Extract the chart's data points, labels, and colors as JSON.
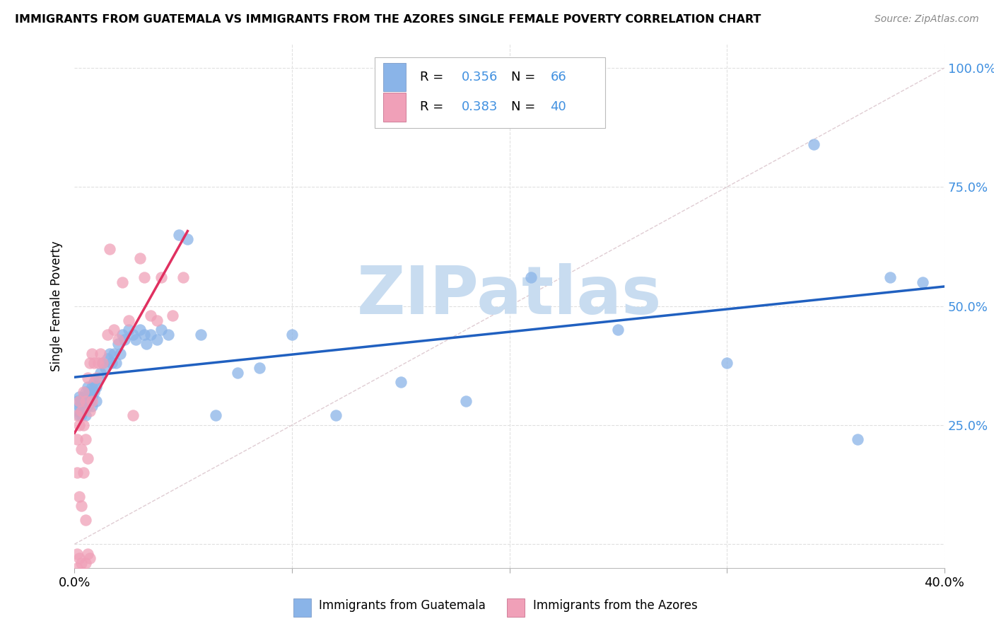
{
  "title": "IMMIGRANTS FROM GUATEMALA VS IMMIGRANTS FROM THE AZORES SINGLE FEMALE POVERTY CORRELATION CHART",
  "source": "Source: ZipAtlas.com",
  "ylabel": "Single Female Poverty",
  "xlim": [
    0.0,
    0.4
  ],
  "ylim": [
    -0.05,
    1.05
  ],
  "r_blue": "0.356",
  "n_blue": "66",
  "r_pink": "0.383",
  "n_pink": "40",
  "color_blue": "#8ab4e8",
  "color_pink": "#f0a0b8",
  "color_blue_line": "#2060c0",
  "color_pink_line": "#e03060",
  "color_diag": "#c8c8c8",
  "color_grid": "#e0e0e0",
  "color_right_tick": "#4090e0",
  "watermark": "ZIPatlas",
  "watermark_color": "#c8dcf0",
  "blue_x": [
    0.001,
    0.001,
    0.002,
    0.002,
    0.002,
    0.003,
    0.003,
    0.003,
    0.004,
    0.004,
    0.004,
    0.005,
    0.005,
    0.005,
    0.006,
    0.006,
    0.006,
    0.007,
    0.007,
    0.008,
    0.008,
    0.008,
    0.009,
    0.009,
    0.01,
    0.01,
    0.011,
    0.012,
    0.013,
    0.014,
    0.015,
    0.016,
    0.017,
    0.018,
    0.019,
    0.02,
    0.021,
    0.022,
    0.023,
    0.025,
    0.027,
    0.028,
    0.03,
    0.032,
    0.033,
    0.035,
    0.038,
    0.04,
    0.043,
    0.048,
    0.052,
    0.058,
    0.065,
    0.075,
    0.085,
    0.1,
    0.12,
    0.15,
    0.18,
    0.21,
    0.25,
    0.3,
    0.34,
    0.36,
    0.375,
    0.39
  ],
  "blue_y": [
    0.3,
    0.28,
    0.27,
    0.29,
    0.31,
    0.28,
    0.3,
    0.27,
    0.29,
    0.31,
    0.28,
    0.3,
    0.27,
    0.32,
    0.31,
    0.29,
    0.33,
    0.3,
    0.32,
    0.31,
    0.29,
    0.33,
    0.32,
    0.34,
    0.33,
    0.3,
    0.35,
    0.36,
    0.38,
    0.37,
    0.39,
    0.4,
    0.38,
    0.4,
    0.38,
    0.42,
    0.4,
    0.44,
    0.43,
    0.45,
    0.44,
    0.43,
    0.45,
    0.44,
    0.42,
    0.44,
    0.43,
    0.45,
    0.44,
    0.65,
    0.64,
    0.44,
    0.27,
    0.36,
    0.37,
    0.44,
    0.27,
    0.34,
    0.3,
    0.56,
    0.45,
    0.38,
    0.84,
    0.22,
    0.56,
    0.55
  ],
  "pink_x": [
    0.001,
    0.001,
    0.001,
    0.002,
    0.002,
    0.002,
    0.003,
    0.003,
    0.003,
    0.004,
    0.004,
    0.004,
    0.005,
    0.005,
    0.005,
    0.006,
    0.006,
    0.007,
    0.007,
    0.008,
    0.008,
    0.009,
    0.01,
    0.011,
    0.012,
    0.013,
    0.015,
    0.016,
    0.018,
    0.02,
    0.022,
    0.025,
    0.027,
    0.03,
    0.032,
    0.035,
    0.038,
    0.04,
    0.045,
    0.05
  ],
  "pink_y": [
    0.27,
    0.22,
    0.15,
    0.3,
    0.25,
    0.1,
    0.28,
    0.2,
    0.08,
    0.32,
    0.25,
    0.15,
    0.3,
    0.22,
    0.05,
    0.35,
    0.18,
    0.38,
    0.28,
    0.4,
    0.3,
    0.38,
    0.35,
    0.38,
    0.4,
    0.38,
    0.44,
    0.62,
    0.45,
    0.43,
    0.55,
    0.47,
    0.27,
    0.6,
    0.56,
    0.48,
    0.47,
    0.56,
    0.48,
    0.56
  ],
  "pink_x_special": [
    0.001,
    0.001,
    0.002,
    0.003,
    0.004,
    0.005,
    0.006,
    0.007
  ],
  "pink_y_special": [
    -0.02,
    -0.05,
    -0.03,
    -0.04,
    -0.06,
    -0.04,
    -0.02,
    -0.03
  ]
}
